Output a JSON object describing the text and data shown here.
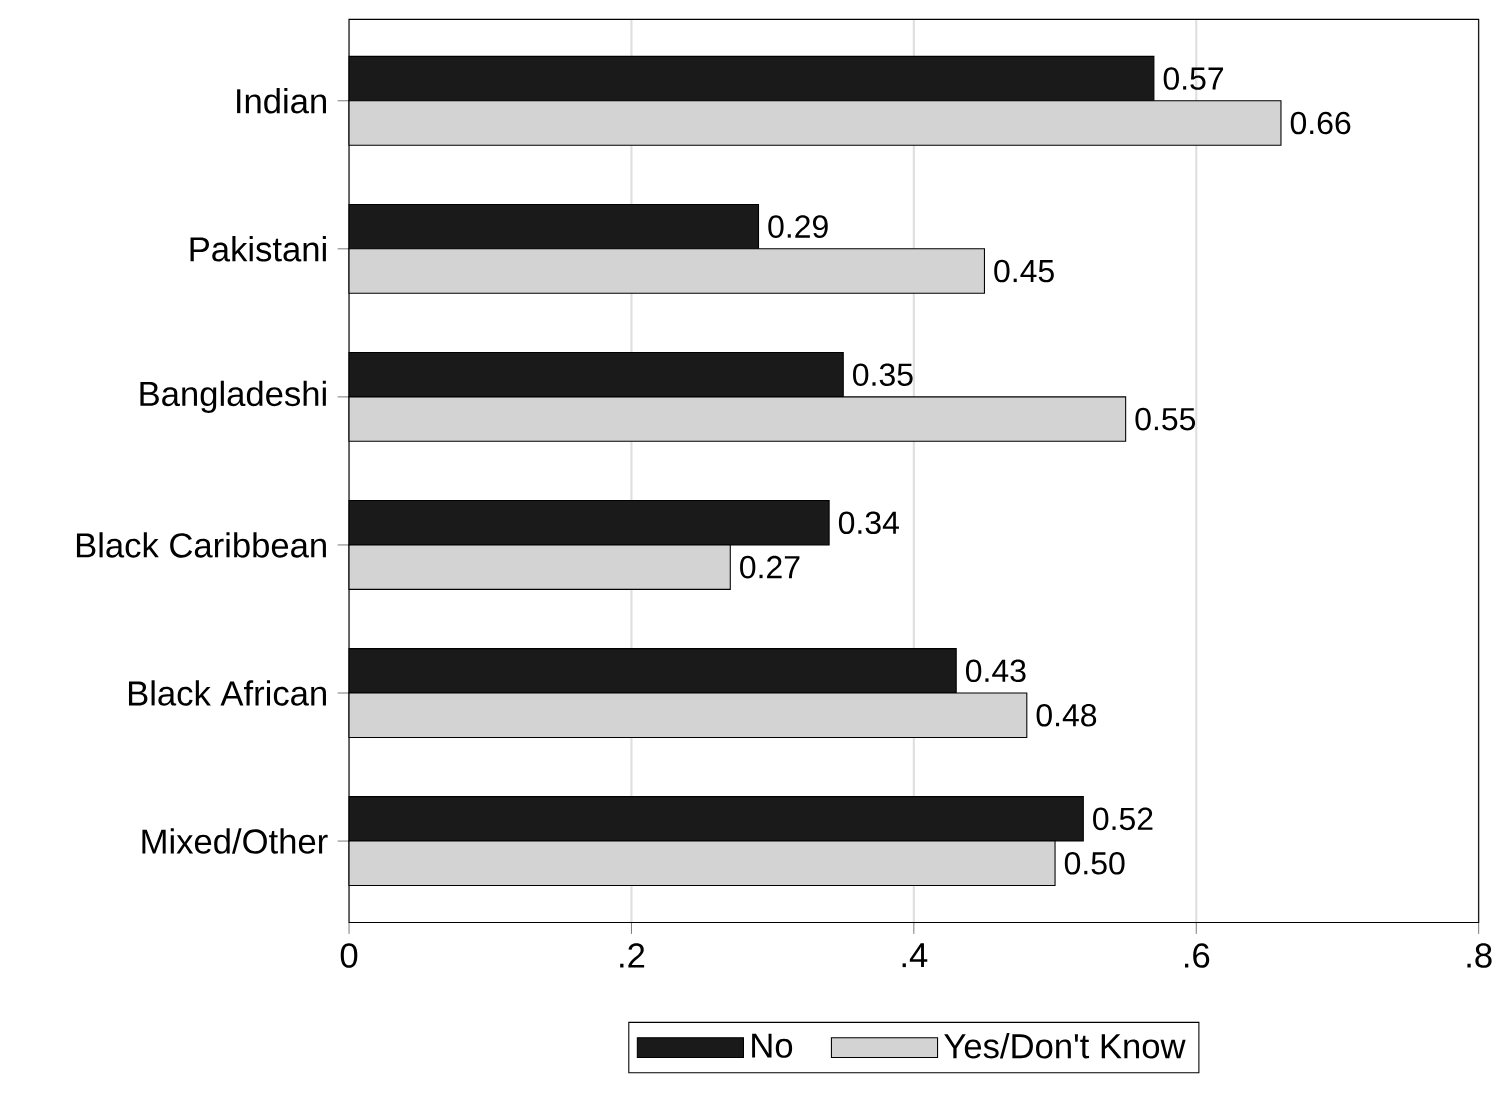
{
  "chart_data": {
    "type": "bar",
    "orientation": "horizontal",
    "categories": [
      "Indian",
      "Pakistani",
      "Bangladeshi",
      "Black Caribbean",
      "Black African",
      "Mixed/Other"
    ],
    "series": [
      {
        "name": "No",
        "color": "#1a1a1a",
        "values": [
          0.57,
          0.29,
          0.35,
          0.34,
          0.43,
          0.52
        ],
        "value_labels": [
          "0.57",
          "0.29",
          "0.35",
          "0.34",
          "0.43",
          "0.52"
        ]
      },
      {
        "name": "Yes/Don't Know",
        "color": "#d3d3d3",
        "values": [
          0.66,
          0.45,
          0.55,
          0.27,
          0.48,
          0.5
        ],
        "value_labels": [
          "0.66",
          "0.45",
          "0.55",
          "0.27",
          "0.48",
          "0.50"
        ]
      }
    ],
    "xlim": [
      0,
      0.8
    ],
    "xticks": [
      0,
      {
        "value": 0.2,
        "label": ".2"
      },
      {
        "value": 0.4,
        "label": ".4"
      },
      {
        "value": 0.6,
        "label": ".6"
      },
      {
        "value": 0.8,
        "label": ".8"
      }
    ],
    "grid": "x",
    "legend": "bottom"
  }
}
